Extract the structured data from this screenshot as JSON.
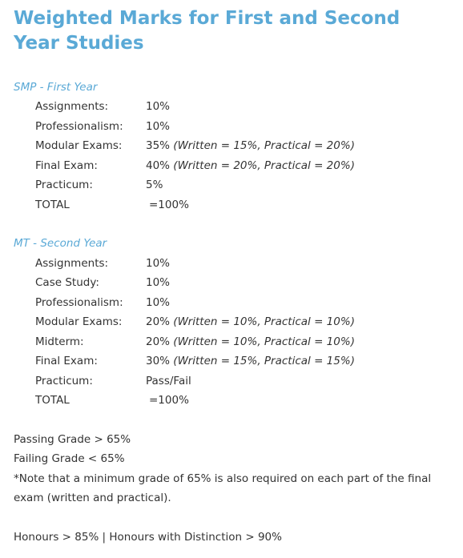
{
  "title": "Weighted Marks for First and Second Year Studies",
  "first_year": {
    "heading": "SMP - First Year",
    "rows": [
      {
        "label": "Assignments:",
        "value": "10%",
        "detail": ""
      },
      {
        "label": "Professionalism:",
        "value": "10%",
        "detail": ""
      },
      {
        "label": "Modular Exams:",
        "value": "35%",
        "detail": " (Written = 15%, Practical = 20%)"
      },
      {
        "label": "Final Exam:",
        "value": "40%",
        "detail": " (Written = 20%, Practical = 20%)"
      },
      {
        "label": "Practicum:",
        "value": "5%",
        "detail": ""
      }
    ],
    "total_label": "TOTAL",
    "total_value": "=100%"
  },
  "second_year": {
    "heading": "MT - Second Year",
    "rows": [
      {
        "label": "Assignments:",
        "value": "10%",
        "detail": ""
      },
      {
        "label": "Case Study:",
        "value": "10%",
        "detail": ""
      },
      {
        "label": "Professionalism:",
        "value": "10%",
        "detail": ""
      },
      {
        "label": "Modular Exams:",
        "value": "20%",
        "detail": " (Written = 10%, Practical = 10%)"
      },
      {
        "label": "Midterm:",
        "value": "20%",
        "detail": " (Written = 10%, Practical = 10%)"
      },
      {
        "label": "Final Exam:",
        "value": "30%",
        "detail": " (Written = 15%, Practical = 15%)"
      },
      {
        "label": "Practicum:",
        "value": "Pass/Fail",
        "detail": ""
      }
    ],
    "total_label": "TOTAL",
    "total_value": "=100%"
  },
  "notes": {
    "passing": "Passing Grade > 65%",
    "failing": "Failing Grade < 65%",
    "note_line1": "*Note that a minimum grade of 65% is also required on each part of the final",
    "note_line2": "exam (written and practical).",
    "honours": "Honours  > 85% | Honours with Distinction > 90%"
  },
  "colors": {
    "heading": "#5aa9d6",
    "text": "#333333"
  }
}
